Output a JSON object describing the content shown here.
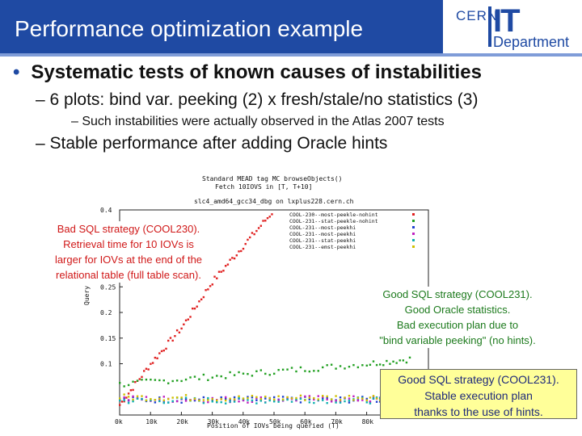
{
  "slide": {
    "title": "Performance optimization example",
    "logo": {
      "top": "CERN",
      "mark": "IT",
      "bottom": "Department"
    },
    "bullets": {
      "b1": "Systematic tests of known causes of instabilities",
      "b2": "6 plots: bind var. peeking (2) x fresh/stale/no statistics (3)",
      "b3": "Such instabilities were actually observed in the Atlas 2007 tests",
      "b4": "Stable performance after adding Oracle hints"
    },
    "dash": "–",
    "bullet_dot": "•"
  },
  "callouts": {
    "red": [
      "Bad SQL strategy (COOL230).",
      "Retrieval time for 10 IOVs is",
      "larger for IOVs at the end of the",
      "relational table (full table scan)."
    ],
    "green": [
      "Good SQL strategy (COOL231).",
      "Good Oracle statistics.",
      "Bad execution plan due to",
      "\"bind variable peeking\" (no hints)."
    ],
    "stable": [
      "Good SQL strategy (COOL231).",
      "Stable execution plan",
      "thanks to the use of hints."
    ]
  },
  "chart_data": {
    "type": "scatter",
    "title": "Standard MEAD tag MC browseObjects()",
    "subtitle": "Fetch 10IOVS in [T, T+10]",
    "subtitle2": "slc4_amd64_gcc34_dbg on lxplus228.cern.ch",
    "xlabel": "Position of IOVs being queried (T)",
    "ylabel": "Query time / sec",
    "xlim": [
      0,
      100000
    ],
    "ylim": [
      0,
      0.4
    ],
    "x_ticks": [
      "0k",
      "10k",
      "20k",
      "30k",
      "40k",
      "50k",
      "60k",
      "70k",
      "80k"
    ],
    "y_ticks": [
      "0.1",
      "0.15",
      "0.2",
      "0.25",
      "0.4"
    ],
    "colors": {
      "red": "#e02020",
      "green": "#22a022",
      "blue": "#2040d0",
      "magenta": "#c020c0",
      "cyan": "#10b0b0",
      "yellow": "#d0c000"
    },
    "series": [
      {
        "name": "COOL-230--most-peekle-nohint",
        "color": "red",
        "x": [
          0,
          10000,
          20000,
          30000,
          40000,
          50000
        ],
        "values": [
          0.02,
          0.1,
          0.17,
          0.26,
          0.33,
          0.4
        ]
      },
      {
        "name": "COOL-231--stat-peekle-nohint",
        "color": "green",
        "x": [
          0,
          20000,
          40000,
          60000,
          80000,
          95000
        ],
        "values": [
          0.06,
          0.07,
          0.08,
          0.09,
          0.1,
          0.11
        ]
      },
      {
        "name": "COOL-231--most-peekhi",
        "color": "blue",
        "x": [
          0,
          20000,
          40000,
          60000,
          80000,
          95000
        ],
        "values": [
          0.03,
          0.03,
          0.03,
          0.03,
          0.03,
          0.03
        ]
      },
      {
        "name": "COOL-231--most-peekhi",
        "color": "magenta",
        "x": [
          0,
          20000,
          40000,
          60000,
          80000,
          95000
        ],
        "values": [
          0.032,
          0.031,
          0.03,
          0.032,
          0.031,
          0.03
        ]
      },
      {
        "name": "COOL-231--stat-peekhi",
        "color": "cyan",
        "x": [
          0,
          20000,
          40000,
          60000,
          80000,
          95000
        ],
        "values": [
          0.028,
          0.029,
          0.028,
          0.03,
          0.029,
          0.028
        ]
      },
      {
        "name": "COOL-231--emst-peekhi",
        "color": "yellow",
        "x": [
          0,
          20000,
          40000,
          60000,
          80000,
          95000
        ],
        "values": [
          0.035,
          0.034,
          0.033,
          0.034,
          0.035,
          0.034
        ]
      }
    ]
  }
}
